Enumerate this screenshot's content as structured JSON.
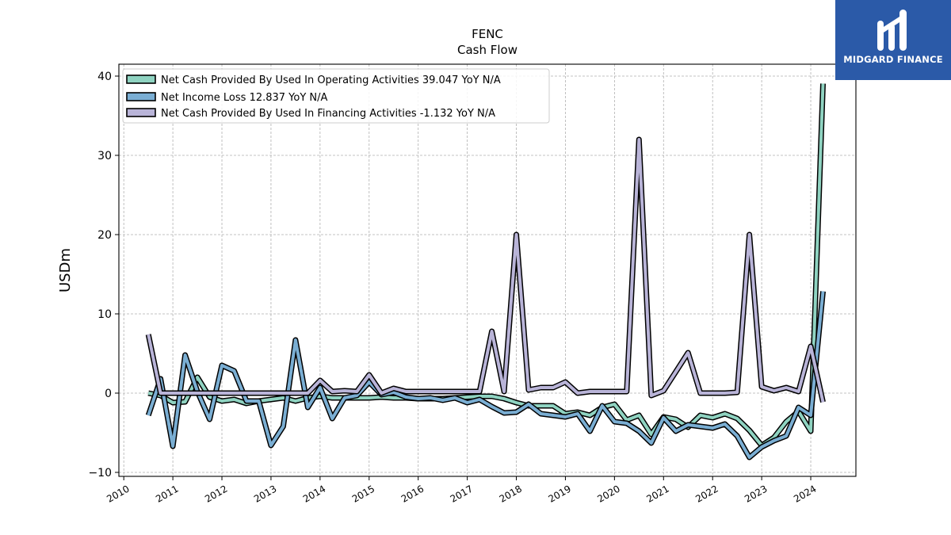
{
  "brand": {
    "logo_text": "MIDGARD FINANCE",
    "logo_bg": "#2b5aa8"
  },
  "chart_data": {
    "type": "line",
    "title": "FENC",
    "subtitle": "Cash Flow",
    "xlabel": "",
    "ylabel": "USDm",
    "xlim": [
      2009.9,
      2024.92
    ],
    "ylim": [
      -10.5,
      41.5
    ],
    "x_ticks": [
      2010,
      2011,
      2012,
      2013,
      2014,
      2015,
      2016,
      2017,
      2018,
      2019,
      2020,
      2021,
      2022,
      2023,
      2024
    ],
    "y_ticks": [
      -10,
      0,
      10,
      20,
      30,
      40
    ],
    "grid": true,
    "legend_position": "top-left",
    "series": [
      {
        "name": "Net Cash Provided By Used In Operating Activities",
        "legend_label": "Net Cash Provided By Used In Operating Activities  39.047 YoY N/A",
        "color": "#8fd3c1",
        "points": [
          [
            2010.5,
            0
          ],
          [
            2010.75,
            -0.3
          ],
          [
            2011.0,
            -1.2
          ],
          [
            2011.25,
            -1.1
          ],
          [
            2011.5,
            2.0
          ],
          [
            2011.75,
            -0.5
          ],
          [
            2012.0,
            -1.0
          ],
          [
            2012.25,
            -0.8
          ],
          [
            2012.5,
            -1.3
          ],
          [
            2012.75,
            -1.0
          ],
          [
            2013.0,
            -0.8
          ],
          [
            2013.25,
            -0.6
          ],
          [
            2013.5,
            -1.0
          ],
          [
            2013.75,
            -0.6
          ],
          [
            2014.0,
            -0.4
          ],
          [
            2014.25,
            -0.6
          ],
          [
            2014.5,
            -0.6
          ],
          [
            2014.75,
            -0.6
          ],
          [
            2015.0,
            -0.6
          ],
          [
            2015.25,
            -0.5
          ],
          [
            2015.5,
            -0.6
          ],
          [
            2015.75,
            -0.6
          ],
          [
            2016.0,
            -0.7
          ],
          [
            2016.25,
            -0.7
          ],
          [
            2016.5,
            -0.7
          ],
          [
            2016.75,
            -0.6
          ],
          [
            2017.0,
            -0.5
          ],
          [
            2017.25,
            -0.4
          ],
          [
            2017.5,
            -0.4
          ],
          [
            2017.75,
            -0.7
          ],
          [
            2018.0,
            -1.2
          ],
          [
            2018.25,
            -1.6
          ],
          [
            2018.5,
            -1.6
          ],
          [
            2018.75,
            -1.6
          ],
          [
            2019.0,
            -2.6
          ],
          [
            2019.25,
            -2.4
          ],
          [
            2019.5,
            -2.8
          ],
          [
            2019.75,
            -1.8
          ],
          [
            2020.0,
            -1.4
          ],
          [
            2020.25,
            -3.4
          ],
          [
            2020.5,
            -2.8
          ],
          [
            2020.75,
            -5.2
          ],
          [
            2021.0,
            -3.0
          ],
          [
            2021.25,
            -3.3
          ],
          [
            2021.5,
            -4.3
          ],
          [
            2021.75,
            -2.8
          ],
          [
            2022.0,
            -3.1
          ],
          [
            2022.25,
            -2.6
          ],
          [
            2022.5,
            -3.2
          ],
          [
            2022.75,
            -4.7
          ],
          [
            2023.0,
            -6.6
          ],
          [
            2023.25,
            -5.6
          ],
          [
            2023.5,
            -3.6
          ],
          [
            2023.75,
            -2.3
          ],
          [
            2024.0,
            -4.8
          ],
          [
            2024.25,
            39.047
          ]
        ]
      },
      {
        "name": "Net Income Loss",
        "legend_label": "Net Income Loss  12.837 YoY N/A",
        "color": "#7aaed3",
        "points": [
          [
            2010.5,
            -2.8
          ],
          [
            2010.75,
            1.8
          ],
          [
            2011.0,
            -6.7
          ],
          [
            2011.25,
            4.8
          ],
          [
            2011.5,
            0.2
          ],
          [
            2011.75,
            -3.3
          ],
          [
            2012.0,
            3.5
          ],
          [
            2012.25,
            2.8
          ],
          [
            2012.5,
            -1.0
          ],
          [
            2012.75,
            -1.0
          ],
          [
            2013.0,
            -6.6
          ],
          [
            2013.25,
            -4.2
          ],
          [
            2013.5,
            6.7
          ],
          [
            2013.75,
            -1.8
          ],
          [
            2014.0,
            0.7
          ],
          [
            2014.25,
            -3.2
          ],
          [
            2014.5,
            -0.6
          ],
          [
            2014.75,
            -0.3
          ],
          [
            2015.0,
            1.4
          ],
          [
            2015.25,
            -0.2
          ],
          [
            2015.5,
            0.1
          ],
          [
            2015.75,
            -0.5
          ],
          [
            2016.0,
            -0.7
          ],
          [
            2016.25,
            -0.6
          ],
          [
            2016.5,
            -0.9
          ],
          [
            2016.75,
            -0.6
          ],
          [
            2017.0,
            -1.2
          ],
          [
            2017.25,
            -0.8
          ],
          [
            2017.5,
            -1.7
          ],
          [
            2017.75,
            -2.5
          ],
          [
            2018.0,
            -2.4
          ],
          [
            2018.25,
            -1.4
          ],
          [
            2018.5,
            -2.6
          ],
          [
            2018.75,
            -2.8
          ],
          [
            2019.0,
            -3.0
          ],
          [
            2019.25,
            -2.6
          ],
          [
            2019.5,
            -4.8
          ],
          [
            2019.75,
            -1.6
          ],
          [
            2020.0,
            -3.6
          ],
          [
            2020.25,
            -3.8
          ],
          [
            2020.5,
            -4.8
          ],
          [
            2020.75,
            -6.3
          ],
          [
            2021.0,
            -3.1
          ],
          [
            2021.25,
            -4.8
          ],
          [
            2021.5,
            -4.0
          ],
          [
            2021.75,
            -4.2
          ],
          [
            2022.0,
            -4.4
          ],
          [
            2022.25,
            -3.9
          ],
          [
            2022.5,
            -5.4
          ],
          [
            2022.75,
            -8.1
          ],
          [
            2023.0,
            -6.8
          ],
          [
            2023.25,
            -6.0
          ],
          [
            2023.5,
            -5.4
          ],
          [
            2023.75,
            -1.8
          ],
          [
            2024.0,
            -2.8
          ],
          [
            2024.25,
            12.837
          ]
        ]
      },
      {
        "name": "Net Cash Provided By Used In Financing Activities",
        "legend_label": "Net Cash Provided By Used In Financing Activities  -1.132 YoY N/A",
        "color": "#b9b4d8",
        "points": [
          [
            2010.5,
            7.4
          ],
          [
            2010.75,
            0
          ],
          [
            2011.0,
            0
          ],
          [
            2011.25,
            0
          ],
          [
            2011.5,
            0
          ],
          [
            2011.75,
            0
          ],
          [
            2012.0,
            0
          ],
          [
            2012.25,
            0
          ],
          [
            2012.5,
            0
          ],
          [
            2012.75,
            0
          ],
          [
            2013.0,
            0
          ],
          [
            2013.25,
            0
          ],
          [
            2013.5,
            0
          ],
          [
            2013.75,
            0
          ],
          [
            2014.0,
            1.6
          ],
          [
            2014.25,
            0.2
          ],
          [
            2014.5,
            0.3
          ],
          [
            2014.75,
            0.2
          ],
          [
            2015.0,
            2.3
          ],
          [
            2015.25,
            0
          ],
          [
            2015.5,
            0.6
          ],
          [
            2015.75,
            0.2
          ],
          [
            2016.0,
            0.2
          ],
          [
            2016.25,
            0.2
          ],
          [
            2016.5,
            0.2
          ],
          [
            2016.75,
            0.2
          ],
          [
            2017.0,
            0.2
          ],
          [
            2017.25,
            0.2
          ],
          [
            2017.5,
            7.8
          ],
          [
            2017.75,
            0.2
          ],
          [
            2018.0,
            20.0
          ],
          [
            2018.25,
            0.4
          ],
          [
            2018.5,
            0.7
          ],
          [
            2018.75,
            0.7
          ],
          [
            2019.0,
            1.4
          ],
          [
            2019.25,
            0
          ],
          [
            2019.5,
            0.2
          ],
          [
            2019.75,
            0.2
          ],
          [
            2020.0,
            0.2
          ],
          [
            2020.25,
            0.2
          ],
          [
            2020.5,
            32.0
          ],
          [
            2020.75,
            -0.3
          ],
          [
            2021.0,
            0.3
          ],
          [
            2021.25,
            2.7
          ],
          [
            2021.5,
            5.1
          ],
          [
            2021.75,
            0
          ],
          [
            2022.0,
            0
          ],
          [
            2022.25,
            0
          ],
          [
            2022.5,
            0.1
          ],
          [
            2022.75,
            20.0
          ],
          [
            2023.0,
            0.8
          ],
          [
            2023.25,
            0.3
          ],
          [
            2023.5,
            0.7
          ],
          [
            2023.75,
            0.2
          ],
          [
            2024.0,
            5.9
          ],
          [
            2024.25,
            -1.132
          ]
        ]
      }
    ]
  }
}
